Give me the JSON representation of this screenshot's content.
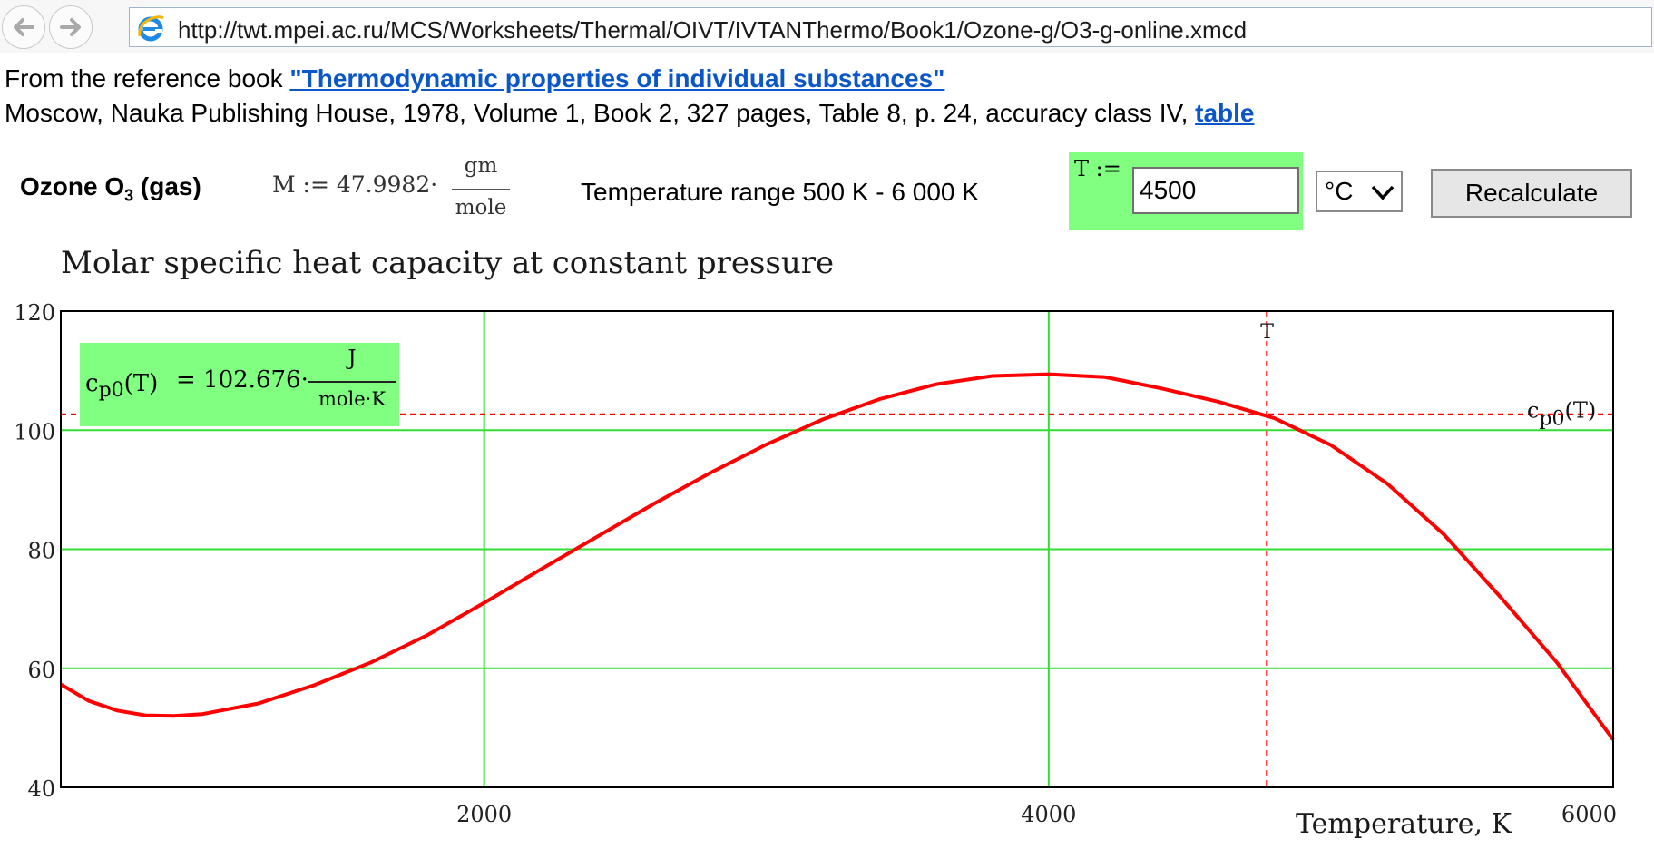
{
  "browser": {
    "url": "http://twt.mpei.ac.ru/MCS/Worksheets/Thermal/OIVT/IVTANThermo/Book1/Ozone-g/O3-g-online.xmcd"
  },
  "reference": {
    "prefix": "From the reference book ",
    "book_link": "\"Thermodynamic properties of individual substances\"",
    "details": "Moscow, Nauka Publishing House, 1978, Volume 1, Book 2, 327 pages, Table 8, p. 24, accuracy class IV, ",
    "table_link": "table"
  },
  "substance": {
    "name": "Ozone O",
    "subscript": "3",
    "suffix": " (gas)"
  },
  "molar_mass": {
    "lhs": "M := 47.9982·",
    "unit_num": "gm",
    "unit_den": "mole"
  },
  "temperature_range": "Temperature range 500 K - 6 000 K",
  "temperature_input": {
    "label": "T :=",
    "value": "4500"
  },
  "unit_select": {
    "value": "°C"
  },
  "recalculate_label": "Recalculate",
  "chart_data": {
    "type": "line",
    "title": "Molar specific heat capacity at constant pressure",
    "xlabel": "Temperature, K",
    "ylabel": "",
    "xlim": [
      500,
      6000
    ],
    "ylim": [
      40,
      120
    ],
    "x_ticks": [
      "2000",
      "4000",
      "6000"
    ],
    "y_ticks": [
      "40",
      "60",
      "80",
      "100",
      "120"
    ],
    "grid": true,
    "marker_T": 4773,
    "marker_label": "T",
    "series": [
      {
        "name": "c_p0(T)",
        "color": "#ff0000",
        "x": [
          500,
          600,
          700,
          800,
          900,
          1000,
          1200,
          1400,
          1600,
          1800,
          2000,
          2200,
          2400,
          2600,
          2800,
          3000,
          3200,
          3400,
          3600,
          3800,
          4000,
          4200,
          4400,
          4600,
          4800,
          5000,
          5200,
          5400,
          5600,
          5800,
          6000
        ],
        "y": [
          57.3,
          54.5,
          52.9,
          52.1,
          52.0,
          52.3,
          54.1,
          57.2,
          61.0,
          65.6,
          71.0,
          76.6,
          82.1,
          87.6,
          92.8,
          97.6,
          101.8,
          105.2,
          107.7,
          109.1,
          109.4,
          108.9,
          107.0,
          104.8,
          102.0,
          97.5,
          91.0,
          82.5,
          72.0,
          61.0,
          48.0
        ]
      }
    ],
    "readout": {
      "name": "c",
      "sub": "p0",
      "arg": "(T)",
      "value": "= 102.676·",
      "unit_num": "J",
      "unit_den": "mole·K",
      "value_num": 102.676
    }
  }
}
